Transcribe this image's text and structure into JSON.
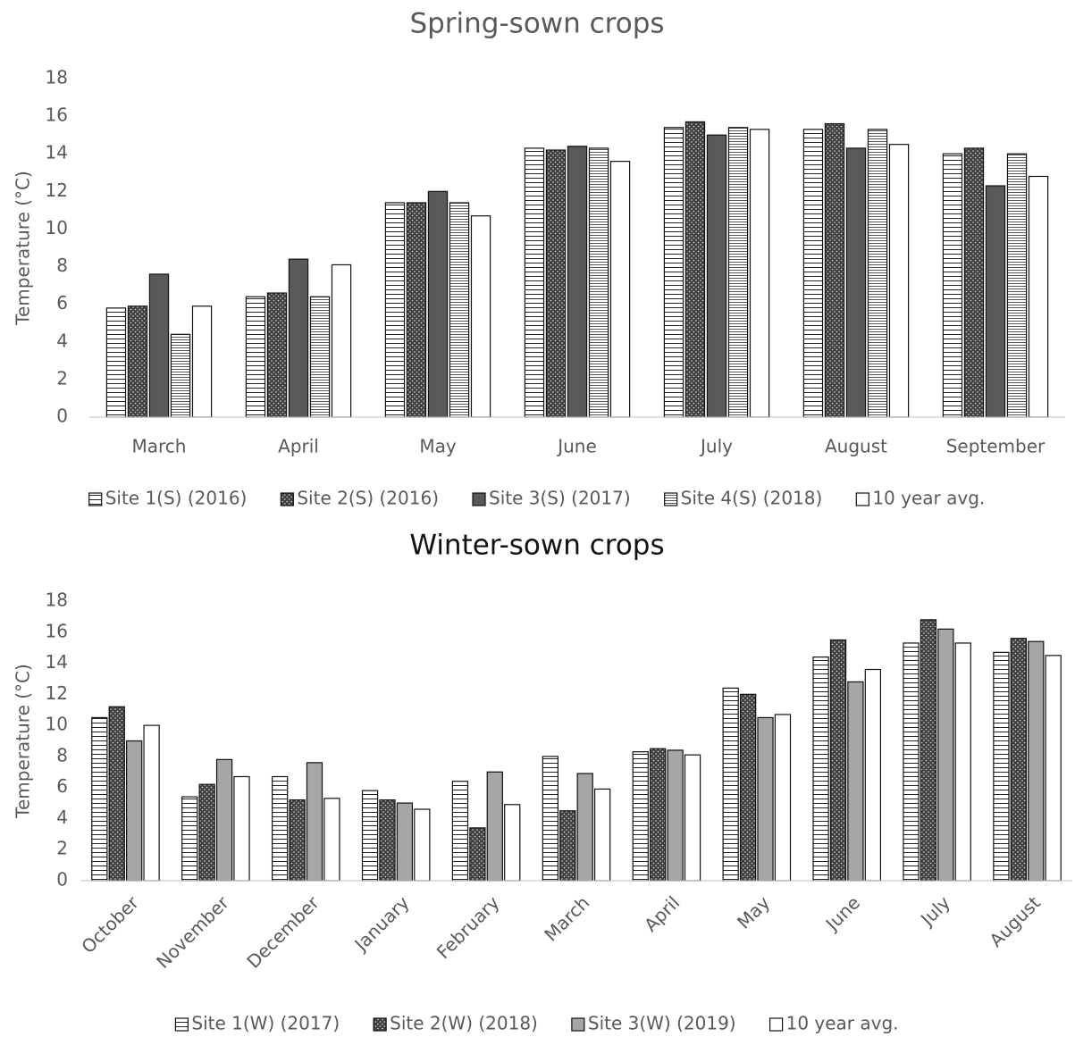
{
  "chart_data": [
    {
      "type": "bar",
      "title": "Spring-sown crops",
      "y_label": "Temperature (°C)",
      "categories": [
        "March",
        "April",
        "May",
        "June",
        "July",
        "August",
        "September"
      ],
      "series": [
        {
          "name": "Site 1(S) (2016)",
          "color": "#ffffff",
          "pattern": "hstripe",
          "values": [
            5.8,
            6.4,
            11.4,
            14.3,
            15.4,
            15.3,
            14.0
          ]
        },
        {
          "name": "Site 2(S) (2016)",
          "color": "#404040",
          "pattern": "dots",
          "values": [
            5.9,
            6.6,
            11.4,
            14.2,
            15.7,
            15.6,
            14.3
          ]
        },
        {
          "name": "Site 3(S) (2017)",
          "color": "#595959",
          "pattern": "solid",
          "values": [
            7.6,
            8.4,
            12.0,
            14.4,
            15.0,
            14.3,
            12.3
          ]
        },
        {
          "name": "Site 4(S) (2018)",
          "color": "#ffffff",
          "pattern": "dense",
          "values": [
            4.4,
            6.4,
            11.4,
            14.3,
            15.4,
            15.3,
            14.0
          ]
        },
        {
          "name": "10 year avg.",
          "color": "#ffffff",
          "pattern": "solid",
          "values": [
            5.9,
            8.1,
            10.7,
            13.6,
            15.3,
            14.5,
            12.8
          ]
        }
      ],
      "ylim": [
        0,
        18
      ],
      "yticks": [
        0,
        2,
        4,
        6,
        8,
        10,
        12,
        14,
        16,
        18
      ],
      "grid": false,
      "legend": "bottom"
    },
    {
      "type": "bar",
      "title": "Winter-sown crops",
      "y_label": "Temperature (°C)",
      "categories": [
        "October",
        "November",
        "December",
        "January",
        "February",
        "March",
        "April",
        "May",
        "June",
        "July",
        "August"
      ],
      "series": [
        {
          "name": "Site 1(W) (2017)",
          "color": "#ffffff",
          "pattern": "hstripe",
          "values": [
            10.5,
            5.4,
            6.7,
            5.8,
            6.4,
            8.0,
            8.3,
            12.4,
            14.4,
            15.3,
            14.7
          ]
        },
        {
          "name": "Site 2(W) (2018)",
          "color": "#404040",
          "pattern": "dots",
          "values": [
            11.2,
            6.2,
            5.2,
            5.2,
            3.4,
            4.5,
            8.5,
            12.0,
            15.5,
            16.8,
            15.6
          ]
        },
        {
          "name": "Site 3(W) (2019)",
          "color": "#a6a6a6",
          "pattern": "solid",
          "values": [
            9.0,
            7.8,
            7.6,
            5.0,
            7.0,
            6.9,
            8.4,
            10.5,
            12.8,
            16.2,
            15.4
          ]
        },
        {
          "name": "10 year avg.",
          "color": "#ffffff",
          "pattern": "solid",
          "values": [
            10.0,
            6.7,
            5.3,
            4.6,
            4.9,
            5.9,
            8.1,
            10.7,
            13.6,
            15.3,
            14.5
          ]
        }
      ],
      "ylim": [
        0,
        18
      ],
      "yticks": [
        0,
        2,
        4,
        6,
        8,
        10,
        12,
        14,
        16,
        18
      ],
      "grid": false,
      "legend": "bottom",
      "x_tick_rotation": -45
    }
  ]
}
